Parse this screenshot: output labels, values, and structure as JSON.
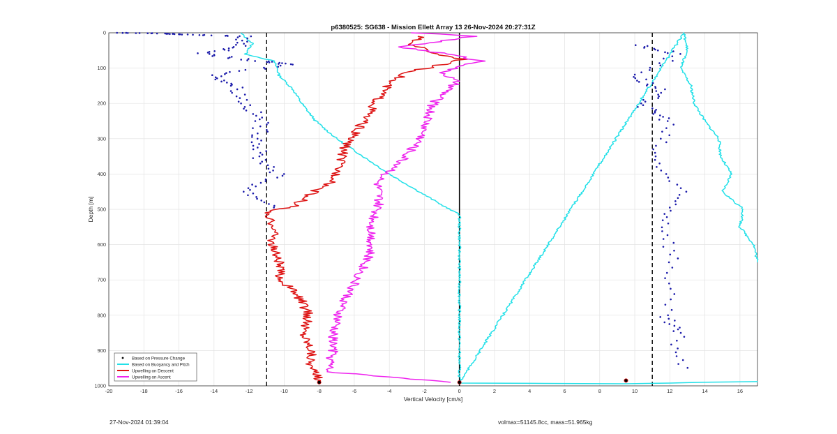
{
  "chart_data": {
    "type": "line",
    "title": "p6380525: SG638 - Mission Ellett Array 13 26-Nov-2024 20:27:31Z",
    "xlabel": "Vertical Velocity [cm/s]",
    "ylabel": "Depth [m]",
    "xlim": [
      -20,
      17
    ],
    "ylim": [
      0,
      1000
    ],
    "y_reversed": true,
    "grid": true,
    "xticks": [
      -20,
      -18,
      -16,
      -14,
      -12,
      -10,
      -8,
      -6,
      -4,
      -2,
      0,
      2,
      4,
      6,
      8,
      10,
      12,
      14,
      16
    ],
    "yticks": [
      0,
      100,
      200,
      300,
      400,
      500,
      600,
      700,
      800,
      900,
      1000
    ],
    "legend": {
      "position": "bottom-left",
      "entries": [
        {
          "label": "Based on Pressure Change",
          "color": "#000000",
          "style": "dot"
        },
        {
          "label": "Based on Buoyancy and Pitch",
          "color": "#22e0e8",
          "style": "line"
        },
        {
          "label": "Upwelling on Descent",
          "color": "#dd1111",
          "style": "line"
        },
        {
          "label": "Upwelling on Ascent",
          "color": "#ee22ee",
          "style": "line"
        }
      ]
    },
    "reference_lines": [
      {
        "x": -11,
        "style": "dashed",
        "color": "#000000"
      },
      {
        "x": 11,
        "style": "dashed",
        "color": "#000000"
      },
      {
        "x": 0,
        "style": "solid",
        "color": "#000000"
      }
    ],
    "series": [
      {
        "key": "descent_model",
        "color": "#22e0e8",
        "points": [
          [
            -12.5,
            0
          ],
          [
            -11.8,
            30
          ],
          [
            -12.2,
            60
          ],
          [
            -10.6,
            80
          ],
          [
            -10.4,
            100
          ],
          [
            -10.3,
            120
          ],
          [
            -9.5,
            160
          ],
          [
            -9,
            200
          ],
          [
            -8.2,
            250
          ],
          [
            -7,
            300
          ],
          [
            -5.5,
            350
          ],
          [
            -4,
            400
          ],
          [
            -2.3,
            450
          ],
          [
            -0.4,
            505
          ],
          [
            0,
            512
          ],
          [
            0,
            990
          ]
        ]
      },
      {
        "key": "ascent_model",
        "color": "#22e0e8",
        "points": [
          [
            17,
            988
          ],
          [
            14,
            990
          ],
          [
            12,
            992
          ],
          [
            9.5,
            994
          ],
          [
            0,
            992
          ],
          [
            12.8,
            0
          ],
          [
            13,
            50
          ],
          [
            12.6,
            100
          ],
          [
            13.2,
            150
          ],
          [
            13.4,
            200
          ],
          [
            14,
            250
          ],
          [
            14.8,
            300
          ],
          [
            14.9,
            350
          ],
          [
            15.5,
            400
          ],
          [
            15,
            450
          ],
          [
            16.2,
            500
          ],
          [
            16,
            550
          ],
          [
            16.8,
            600
          ],
          [
            17,
            650
          ]
        ]
      },
      {
        "key": "descent_observed",
        "color": "#1a1aaa",
        "points": [
          [
            -19.5,
            0
          ],
          [
            -16.8,
            2
          ],
          [
            -15.6,
            5
          ],
          [
            -12.3,
            10
          ],
          [
            -12.5,
            40
          ],
          [
            -14.7,
            60
          ],
          [
            -11.5,
            80
          ],
          [
            -9.6,
            90
          ],
          [
            -14,
            120
          ],
          [
            -12.8,
            150
          ],
          [
            -12.2,
            200
          ],
          [
            -11.3,
            250
          ],
          [
            -11.4,
            300
          ],
          [
            -11.5,
            350
          ],
          [
            -10.3,
            400
          ],
          [
            -12.2,
            450
          ],
          [
            -10.2,
            500
          ]
        ]
      },
      {
        "key": "ascent_observed",
        "color": "#1a1aaa",
        "points": [
          [
            10.2,
            35
          ],
          [
            12.5,
            60
          ],
          [
            10.1,
            125
          ],
          [
            11.3,
            160
          ],
          [
            10.5,
            210
          ],
          [
            12,
            250
          ],
          [
            11,
            350
          ],
          [
            12.5,
            450
          ],
          [
            11.8,
            540
          ],
          [
            12.2,
            650
          ],
          [
            11.6,
            800
          ],
          [
            12.4,
            850
          ],
          [
            12.6,
            960
          ]
        ]
      },
      {
        "key": "upwelling_descent",
        "color": "#dd1111",
        "points": [
          [
            -2.2,
            10
          ],
          [
            -2.8,
            30
          ],
          [
            -1.3,
            60
          ],
          [
            0.3,
            75
          ],
          [
            -2.8,
            110
          ],
          [
            -4,
            140
          ],
          [
            -4.8,
            200
          ],
          [
            -5.6,
            260
          ],
          [
            -6.5,
            320
          ],
          [
            -6.9,
            380
          ],
          [
            -7.1,
            420
          ],
          [
            -8.3,
            450
          ],
          [
            -9.4,
            490
          ],
          [
            -11.2,
            510
          ],
          [
            -10.5,
            550
          ],
          [
            -10.7,
            600
          ],
          [
            -10.3,
            650
          ],
          [
            -10.2,
            700
          ],
          [
            -9.5,
            730
          ],
          [
            -9,
            760
          ],
          [
            -8.6,
            800
          ],
          [
            -8.9,
            850
          ],
          [
            -8.4,
            900
          ],
          [
            -8.5,
            950
          ],
          [
            -7.9,
            985
          ]
        ]
      },
      {
        "key": "upwelling_ascent",
        "color": "#ee22ee",
        "points": [
          [
            -2.5,
            0
          ],
          [
            0.8,
            10
          ],
          [
            -3.4,
            40
          ],
          [
            -0.7,
            60
          ],
          [
            1.3,
            80
          ],
          [
            -1,
            110
          ],
          [
            -0.2,
            140
          ],
          [
            -1.5,
            200
          ],
          [
            -2.2,
            300
          ],
          [
            -3.6,
            380
          ],
          [
            -4.7,
            420
          ],
          [
            -4.6,
            480
          ],
          [
            -5,
            550
          ],
          [
            -5,
            600
          ],
          [
            -5.3,
            650
          ],
          [
            -6.1,
            720
          ],
          [
            -6.8,
            780
          ],
          [
            -7.2,
            850
          ],
          [
            -7.2,
            900
          ],
          [
            -7.5,
            960
          ],
          [
            -0.5,
            990
          ]
        ]
      }
    ],
    "markers": [
      {
        "label_color": "#000000",
        "points": [
          [
            -8,
            990
          ],
          [
            9.5,
            985
          ],
          [
            0,
            990
          ]
        ]
      }
    ]
  },
  "footer": {
    "timestamp": "27-Nov-2024 01:39:04",
    "summary": "volmax=51145.8cc, mass=51.965kg"
  }
}
